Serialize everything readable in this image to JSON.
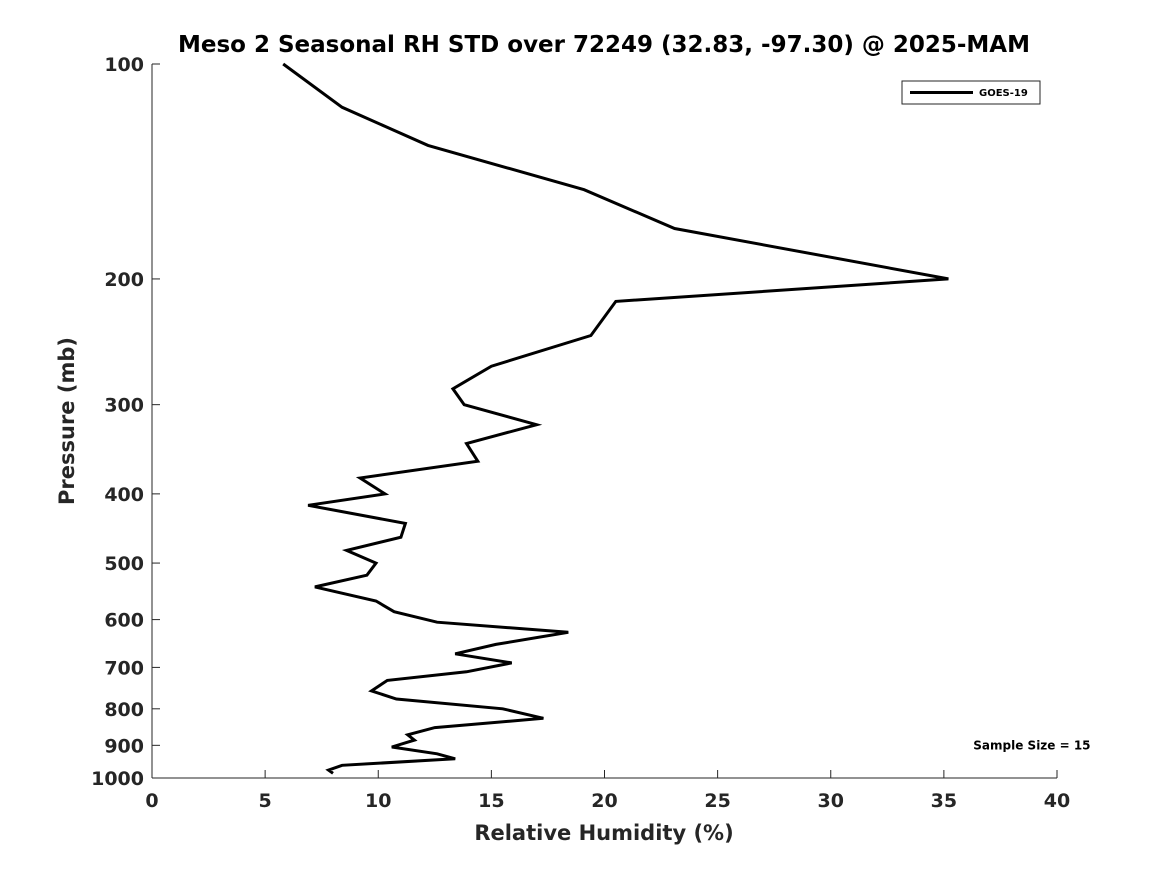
{
  "chart_data": {
    "type": "line",
    "title": "Meso 2 Seasonal RH STD over 72249 (32.83, -97.30) @ 2025-MAM",
    "xlabel": "Relative Humidity (%)",
    "ylabel": "Pressure (mb)",
    "xlim": [
      0,
      40
    ],
    "ylim": [
      100,
      1000
    ],
    "y_scale": "log",
    "y_reversed": true,
    "grid": false,
    "x_ticks": [
      0,
      5,
      10,
      15,
      20,
      25,
      30,
      35,
      40
    ],
    "x_tick_labels": [
      "0",
      "5",
      "10",
      "15",
      "20",
      "25",
      "30",
      "35",
      "40"
    ],
    "y_ticks": [
      100,
      200,
      300,
      400,
      500,
      600,
      700,
      800,
      900,
      1000
    ],
    "y_tick_labels": [
      "100",
      "200",
      "300",
      "400",
      "500",
      "600",
      "700",
      "800",
      "900",
      "1000"
    ],
    "legend": {
      "placement": "top-right"
    },
    "series": [
      {
        "name": "GOES-19",
        "color": "#000000",
        "x": [
          5.8,
          8.4,
          12.2,
          19.1,
          23.1,
          35.2,
          20.5,
          19.4,
          15.0,
          13.3,
          13.8,
          17.0,
          13.9,
          14.4,
          9.2,
          10.3,
          6.9,
          11.2,
          11.0,
          8.6,
          9.9,
          9.5,
          7.2,
          9.9,
          10.7,
          12.6,
          18.4,
          15.2,
          13.4,
          15.9,
          13.9,
          10.4,
          9.7,
          10.8,
          15.5,
          17.3,
          12.5,
          11.3,
          11.6,
          10.6,
          12.6,
          13.4,
          8.4,
          7.8,
          8.0
        ],
        "y": [
          100,
          115,
          130,
          150,
          170,
          200,
          215,
          240,
          265,
          285,
          300,
          320,
          340,
          360,
          380,
          400,
          415,
          440,
          460,
          480,
          500,
          520,
          540,
          565,
          585,
          605,
          625,
          650,
          670,
          690,
          710,
          730,
          755,
          775,
          800,
          825,
          850,
          870,
          885,
          905,
          925,
          940,
          960,
          975,
          985
        ]
      }
    ],
    "annotations": [
      {
        "text": "Sample Size = 15",
        "x": 36.3,
        "y": 900
      }
    ]
  }
}
